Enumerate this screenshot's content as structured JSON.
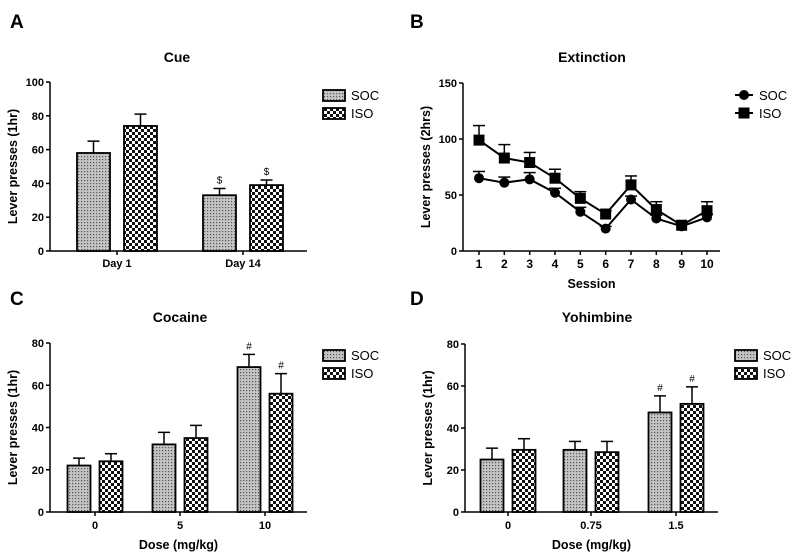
{
  "chart_data": [
    {
      "type": "bar",
      "panel_letter": "A",
      "title": "Cue",
      "xlabel": "",
      "ylabel": "Lever presses (1hr)",
      "ylim": [
        0,
        100
      ],
      "yticks": [
        "0",
        "20",
        "40",
        "60",
        "80",
        "100"
      ],
      "categories": [
        "Day 1",
        "Day 14"
      ],
      "series": [
        {
          "name": "SOC",
          "values": [
            58,
            33
          ],
          "errors": [
            7,
            4
          ],
          "annotations": [
            "",
            "$"
          ]
        },
        {
          "name": "ISO",
          "values": [
            74,
            39
          ],
          "errors": [
            7,
            3
          ],
          "annotations": [
            "",
            "$"
          ]
        }
      ],
      "legend": "right"
    },
    {
      "type": "line",
      "panel_letter": "B",
      "title": "Extinction",
      "xlabel": "Session",
      "ylabel": "Lever presses (2hrs)",
      "ylim": [
        0,
        150
      ],
      "yticks": [
        "0",
        "50",
        "100",
        "150"
      ],
      "x": [
        "1",
        "2",
        "3",
        "4",
        "5",
        "6",
        "7",
        "8",
        "9",
        "10"
      ],
      "series": [
        {
          "name": "SOC",
          "marker": "circle",
          "values": [
            65,
            61,
            64,
            52,
            35,
            20,
            46,
            29,
            22,
            30
          ],
          "errors": [
            6,
            5,
            6,
            4,
            4,
            2,
            3,
            3,
            2,
            3
          ]
        },
        {
          "name": "ISO",
          "marker": "square",
          "values": [
            99,
            83,
            79,
            65,
            47,
            33,
            59,
            37,
            23,
            36
          ],
          "errors": [
            13,
            12,
            9,
            8,
            6,
            3,
            8,
            7,
            2,
            8
          ]
        }
      ],
      "legend": "right"
    },
    {
      "type": "bar",
      "panel_letter": "C",
      "title": "Cocaine",
      "xlabel": "Dose (mg/kg)",
      "ylabel": "Lever presses (1hr)",
      "ylim": [
        0,
        80
      ],
      "yticks": [
        "0",
        "20",
        "40",
        "60",
        "80"
      ],
      "categories": [
        "0",
        "5",
        "10"
      ],
      "series": [
        {
          "name": "SOC",
          "values": [
            22,
            32,
            68.6
          ],
          "errors": [
            3.5,
            5.7,
            6
          ],
          "annotations": [
            "",
            "",
            "#"
          ]
        },
        {
          "name": "ISO",
          "values": [
            24,
            35,
            56
          ],
          "errors": [
            3.6,
            6,
            9.5
          ],
          "annotations": [
            "",
            "",
            "#"
          ]
        }
      ],
      "legend": "right"
    },
    {
      "type": "bar",
      "panel_letter": "D",
      "title": "Yohimbine",
      "xlabel": "Dose (mg/kg)",
      "ylabel": "Lever presses (1hr)",
      "ylim": [
        0,
        80
      ],
      "yticks": [
        "0",
        "20",
        "40",
        "60",
        "80"
      ],
      "categories": [
        "0",
        "0.75",
        "1.5"
      ],
      "series": [
        {
          "name": "SOC",
          "values": [
            25,
            29.6,
            47.4
          ],
          "errors": [
            5.4,
            4,
            7.9
          ],
          "annotations": [
            "",
            "",
            "#"
          ]
        },
        {
          "name": "ISO",
          "values": [
            29.6,
            28.5,
            51.5
          ],
          "errors": [
            5.3,
            5.1,
            8.1
          ],
          "annotations": [
            "",
            "",
            "#"
          ]
        }
      ],
      "legend": "right"
    }
  ]
}
